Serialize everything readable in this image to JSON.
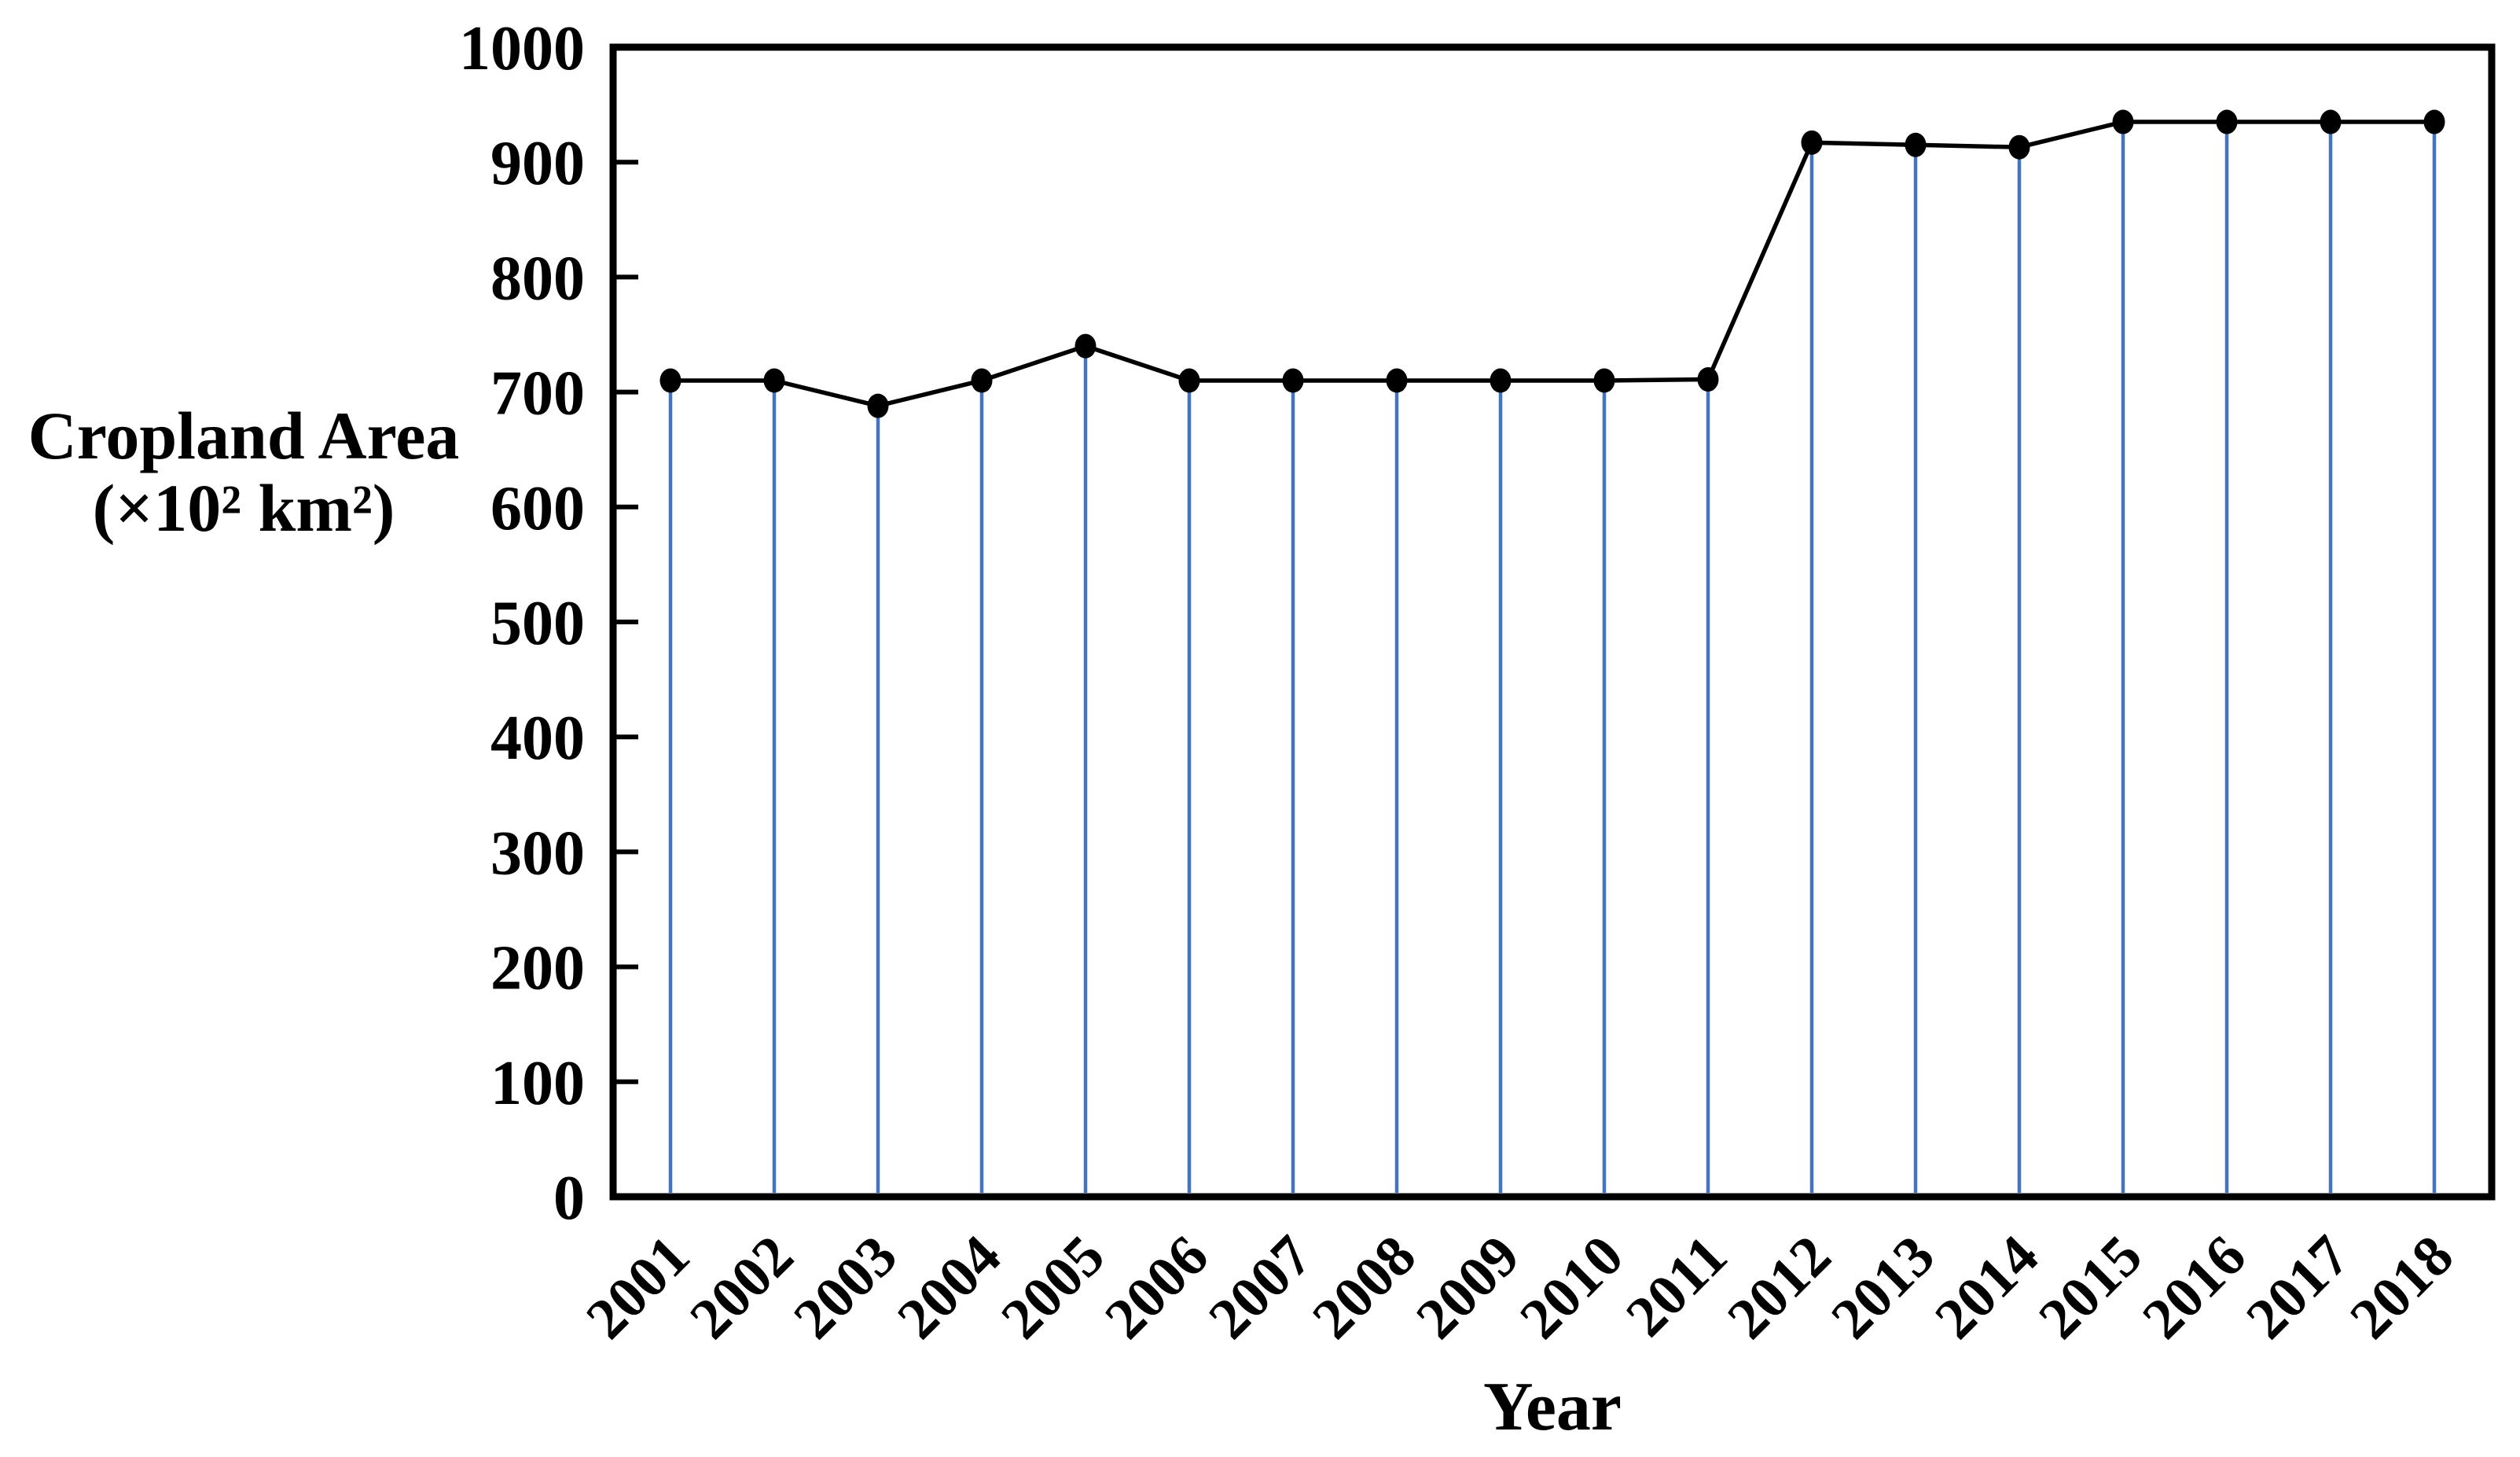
{
  "figure": {
    "y_axis_title_line1": "Cropland Area",
    "y_axis_title_line2": "(×10² km²)",
    "x_axis_title": "Year"
  },
  "chart_data": {
    "type": "line",
    "title": "",
    "xlabel": "Year",
    "ylabel": "Cropland Area (×10² km²)",
    "categories": [
      "2001",
      "2002",
      "2003",
      "2004",
      "2005",
      "2006",
      "2007",
      "2008",
      "2009",
      "2010",
      "2011",
      "2012",
      "2013",
      "2014",
      "2015",
      "2016",
      "2017",
      "2018"
    ],
    "series": [
      {
        "name": "Cropland Area",
        "values": [
          710,
          710,
          688,
          710,
          740,
          710,
          710,
          710,
          710,
          710,
          711,
          917,
          915,
          913,
          935,
          935,
          935,
          935
        ]
      }
    ],
    "ylim": [
      0,
      1000
    ],
    "ytick_step": 100,
    "y_ticks": [
      0,
      100,
      200,
      300,
      400,
      500,
      600,
      700,
      800,
      900,
      1000
    ],
    "y_tick_labels": [
      "0",
      "100",
      "200",
      "300",
      "400",
      "500",
      "600",
      "700",
      "800",
      "900",
      "1000"
    ],
    "grid": false,
    "legend_position": "none",
    "marker": "filled-circle",
    "drop_lines": true,
    "x_label_rotation_deg": -45,
    "colors": {
      "line": "#000000",
      "marker": "#000000",
      "drop_line": "#4472C4",
      "axis": "#000000",
      "text": "#000000",
      "background": "#ffffff"
    }
  }
}
